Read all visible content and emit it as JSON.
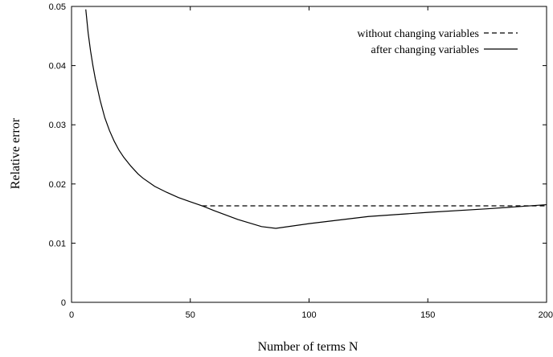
{
  "chart_data": {
    "type": "line",
    "title": "",
    "xlabel": "Number of terms N",
    "ylabel": "Relative error",
    "xlim": [
      0,
      200
    ],
    "ylim": [
      0,
      0.05
    ],
    "x_ticks": [
      0,
      50,
      100,
      150,
      200
    ],
    "x_tick_labels": [
      "0",
      "50",
      "100",
      "150",
      "200"
    ],
    "y_ticks": [
      0,
      0.01,
      0.02,
      0.03,
      0.04,
      0.05
    ],
    "y_tick_labels": [
      "0",
      "0.01",
      "0.02",
      "0.03",
      "0.04",
      "0.05"
    ],
    "grid": false,
    "legend_position": "top-right",
    "series": [
      {
        "name": "without changing variables",
        "style": "dashed",
        "color": "#000000",
        "x": [
          55,
          200
        ],
        "y": [
          0.0163,
          0.0163
        ]
      },
      {
        "name": "after changing variables",
        "style": "solid",
        "color": "#000000",
        "x": [
          6,
          7,
          8,
          9,
          10,
          12,
          14,
          16,
          18,
          20,
          22,
          25,
          28,
          30,
          35,
          40,
          45,
          50,
          55,
          60,
          70,
          80,
          86,
          100,
          125,
          150,
          175,
          200
        ],
        "y": [
          0.0495,
          0.0455,
          0.0425,
          0.04,
          0.0378,
          0.0342,
          0.0312,
          0.029,
          0.0272,
          0.0257,
          0.0245,
          0.023,
          0.0217,
          0.021,
          0.0196,
          0.0186,
          0.0177,
          0.017,
          0.0163,
          0.0155,
          0.014,
          0.0128,
          0.0125,
          0.0133,
          0.0145,
          0.0152,
          0.0158,
          0.0165
        ]
      }
    ]
  }
}
